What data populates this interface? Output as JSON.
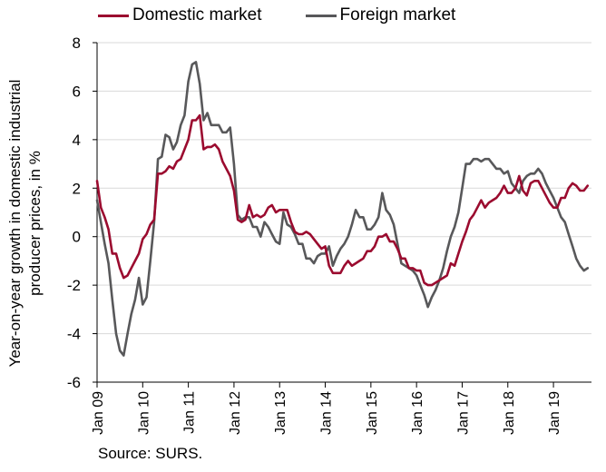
{
  "chart_data": {
    "type": "line",
    "ylabel": "Year-on-year growth in domestic industrial producer prices, in %",
    "source": "Source: SURS.",
    "ylim": [
      -6,
      8
    ],
    "yticks": [
      -6,
      -4,
      -2,
      0,
      2,
      4,
      6,
      8
    ],
    "xlim": [
      2009.0,
      2019.8333
    ],
    "xticks": [
      {
        "label": "Jan 09",
        "x": 2009.0
      },
      {
        "label": "Jan 10",
        "x": 2010.0
      },
      {
        "label": "Jan 11",
        "x": 2011.0
      },
      {
        "label": "Jan 12",
        "x": 2012.0
      },
      {
        "label": "Jan 13",
        "x": 2013.0
      },
      {
        "label": "Jan 14",
        "x": 2014.0
      },
      {
        "label": "Jan 15",
        "x": 2015.0
      },
      {
        "label": "Jan 16",
        "x": 2016.0
      },
      {
        "label": "Jan 17",
        "x": 2017.0
      },
      {
        "label": "Jan 18",
        "x": 2018.0
      },
      {
        "label": "Jan 19",
        "x": 2019.0
      }
    ],
    "grid": "horizontal",
    "legend_position": "top",
    "series": [
      {
        "name": "Domestic market",
        "color": "#9B0B2F",
        "points": [
          [
            2009.0,
            2.3
          ],
          [
            2009.083,
            1.2
          ],
          [
            2009.167,
            0.8
          ],
          [
            2009.25,
            0.3
          ],
          [
            2009.333,
            -0.7
          ],
          [
            2009.417,
            -0.7
          ],
          [
            2009.5,
            -1.3
          ],
          [
            2009.583,
            -1.7
          ],
          [
            2009.667,
            -1.6
          ],
          [
            2009.75,
            -1.3
          ],
          [
            2009.833,
            -1.0
          ],
          [
            2009.917,
            -0.7
          ],
          [
            2010.0,
            -0.1
          ],
          [
            2010.083,
            0.1
          ],
          [
            2010.167,
            0.5
          ],
          [
            2010.25,
            0.7
          ],
          [
            2010.333,
            2.6
          ],
          [
            2010.417,
            2.6
          ],
          [
            2010.5,
            2.7
          ],
          [
            2010.583,
            2.9
          ],
          [
            2010.667,
            2.8
          ],
          [
            2010.75,
            3.1
          ],
          [
            2010.833,
            3.2
          ],
          [
            2010.917,
            3.6
          ],
          [
            2011.0,
            4.0
          ],
          [
            2011.083,
            4.8
          ],
          [
            2011.167,
            4.8
          ],
          [
            2011.25,
            5.0
          ],
          [
            2011.333,
            3.6
          ],
          [
            2011.417,
            3.7
          ],
          [
            2011.5,
            3.7
          ],
          [
            2011.583,
            3.8
          ],
          [
            2011.667,
            3.6
          ],
          [
            2011.75,
            3.1
          ],
          [
            2011.833,
            2.8
          ],
          [
            2011.917,
            2.5
          ],
          [
            2012.0,
            1.9
          ],
          [
            2012.083,
            0.7
          ],
          [
            2012.167,
            0.6
          ],
          [
            2012.25,
            0.7
          ],
          [
            2012.333,
            1.3
          ],
          [
            2012.417,
            0.8
          ],
          [
            2012.5,
            0.9
          ],
          [
            2012.583,
            0.8
          ],
          [
            2012.667,
            0.9
          ],
          [
            2012.75,
            1.2
          ],
          [
            2012.833,
            1.3
          ],
          [
            2012.917,
            1.0
          ],
          [
            2013.0,
            1.1
          ],
          [
            2013.083,
            1.1
          ],
          [
            2013.167,
            1.1
          ],
          [
            2013.25,
            0.6
          ],
          [
            2013.333,
            0.2
          ],
          [
            2013.417,
            0.1
          ],
          [
            2013.5,
            0.1
          ],
          [
            2013.583,
            0.2
          ],
          [
            2013.667,
            0.1
          ],
          [
            2013.75,
            -0.1
          ],
          [
            2013.833,
            -0.3
          ],
          [
            2013.917,
            -0.5
          ],
          [
            2014.0,
            -0.4
          ],
          [
            2014.083,
            -1.2
          ],
          [
            2014.167,
            -1.5
          ],
          [
            2014.25,
            -1.5
          ],
          [
            2014.333,
            -1.5
          ],
          [
            2014.417,
            -1.2
          ],
          [
            2014.5,
            -1.0
          ],
          [
            2014.583,
            -1.2
          ],
          [
            2014.667,
            -1.1
          ],
          [
            2014.75,
            -1.0
          ],
          [
            2014.833,
            -0.9
          ],
          [
            2014.917,
            -0.6
          ],
          [
            2015.0,
            -0.6
          ],
          [
            2015.083,
            -0.4
          ],
          [
            2015.167,
            0.0
          ],
          [
            2015.25,
            0.0
          ],
          [
            2015.333,
            0.1
          ],
          [
            2015.417,
            -0.2
          ],
          [
            2015.5,
            -0.2
          ],
          [
            2015.583,
            -0.5
          ],
          [
            2015.667,
            -0.9
          ],
          [
            2015.75,
            -0.9
          ],
          [
            2015.833,
            -1.3
          ],
          [
            2015.917,
            -1.3
          ],
          [
            2016.0,
            -1.4
          ],
          [
            2016.083,
            -1.4
          ],
          [
            2016.167,
            -1.9
          ],
          [
            2016.25,
            -2.0
          ],
          [
            2016.333,
            -2.0
          ],
          [
            2016.417,
            -1.9
          ],
          [
            2016.5,
            -1.8
          ],
          [
            2016.583,
            -1.7
          ],
          [
            2016.667,
            -1.6
          ],
          [
            2016.75,
            -1.1
          ],
          [
            2016.833,
            -1.2
          ],
          [
            2016.917,
            -0.7
          ],
          [
            2017.0,
            -0.2
          ],
          [
            2017.083,
            0.2
          ],
          [
            2017.167,
            0.7
          ],
          [
            2017.25,
            0.9
          ],
          [
            2017.333,
            1.2
          ],
          [
            2017.417,
            1.5
          ],
          [
            2017.5,
            1.2
          ],
          [
            2017.583,
            1.4
          ],
          [
            2017.667,
            1.5
          ],
          [
            2017.75,
            1.6
          ],
          [
            2017.833,
            1.8
          ],
          [
            2017.917,
            2.1
          ],
          [
            2018.0,
            1.8
          ],
          [
            2018.083,
            1.8
          ],
          [
            2018.167,
            2.0
          ],
          [
            2018.25,
            2.5
          ],
          [
            2018.333,
            1.9
          ],
          [
            2018.417,
            1.7
          ],
          [
            2018.5,
            2.2
          ],
          [
            2018.583,
            2.3
          ],
          [
            2018.667,
            2.3
          ],
          [
            2018.75,
            2.0
          ],
          [
            2018.833,
            1.7
          ],
          [
            2018.917,
            1.4
          ],
          [
            2019.0,
            1.2
          ],
          [
            2019.083,
            1.2
          ],
          [
            2019.167,
            1.6
          ],
          [
            2019.25,
            1.6
          ],
          [
            2019.333,
            2.0
          ],
          [
            2019.417,
            2.2
          ],
          [
            2019.5,
            2.1
          ],
          [
            2019.583,
            1.9
          ],
          [
            2019.667,
            1.9
          ],
          [
            2019.75,
            2.1
          ]
        ]
      },
      {
        "name": "Foreign market",
        "color": "#58585A",
        "points": [
          [
            2009.0,
            1.5
          ],
          [
            2009.083,
            0.6
          ],
          [
            2009.167,
            -0.3
          ],
          [
            2009.25,
            -1.1
          ],
          [
            2009.333,
            -2.6
          ],
          [
            2009.417,
            -4.0
          ],
          [
            2009.5,
            -4.7
          ],
          [
            2009.583,
            -4.9
          ],
          [
            2009.667,
            -4.0
          ],
          [
            2009.75,
            -3.2
          ],
          [
            2009.833,
            -2.6
          ],
          [
            2009.917,
            -1.7
          ],
          [
            2010.0,
            -2.8
          ],
          [
            2010.083,
            -2.5
          ],
          [
            2010.167,
            -1.0
          ],
          [
            2010.25,
            0.6
          ],
          [
            2010.333,
            3.2
          ],
          [
            2010.417,
            3.3
          ],
          [
            2010.5,
            4.2
          ],
          [
            2010.583,
            4.1
          ],
          [
            2010.667,
            3.6
          ],
          [
            2010.75,
            3.9
          ],
          [
            2010.833,
            4.6
          ],
          [
            2010.917,
            5.0
          ],
          [
            2011.0,
            6.4
          ],
          [
            2011.083,
            7.1
          ],
          [
            2011.167,
            7.2
          ],
          [
            2011.25,
            6.3
          ],
          [
            2011.333,
            4.8
          ],
          [
            2011.417,
            5.1
          ],
          [
            2011.5,
            4.6
          ],
          [
            2011.583,
            4.6
          ],
          [
            2011.667,
            4.6
          ],
          [
            2011.75,
            4.3
          ],
          [
            2011.833,
            4.3
          ],
          [
            2011.917,
            4.5
          ],
          [
            2012.0,
            3.0
          ],
          [
            2012.083,
            0.9
          ],
          [
            2012.167,
            0.7
          ],
          [
            2012.25,
            0.8
          ],
          [
            2012.333,
            0.8
          ],
          [
            2012.417,
            0.4
          ],
          [
            2012.5,
            0.4
          ],
          [
            2012.583,
            0.0
          ],
          [
            2012.667,
            0.6
          ],
          [
            2012.75,
            0.4
          ],
          [
            2012.833,
            0.1
          ],
          [
            2012.917,
            -0.2
          ],
          [
            2013.0,
            -0.3
          ],
          [
            2013.083,
            1.0
          ],
          [
            2013.167,
            0.5
          ],
          [
            2013.25,
            0.4
          ],
          [
            2013.333,
            0.1
          ],
          [
            2013.417,
            -0.3
          ],
          [
            2013.5,
            -0.3
          ],
          [
            2013.583,
            -0.9
          ],
          [
            2013.667,
            -0.9
          ],
          [
            2013.75,
            -1.1
          ],
          [
            2013.833,
            -0.8
          ],
          [
            2013.917,
            -0.7
          ],
          [
            2014.0,
            -0.7
          ],
          [
            2014.083,
            -0.4
          ],
          [
            2014.167,
            -1.2
          ],
          [
            2014.25,
            -0.8
          ],
          [
            2014.333,
            -0.5
          ],
          [
            2014.417,
            -0.3
          ],
          [
            2014.5,
            0.0
          ],
          [
            2014.583,
            0.5
          ],
          [
            2014.667,
            1.1
          ],
          [
            2014.75,
            0.8
          ],
          [
            2014.833,
            0.8
          ],
          [
            2014.917,
            0.3
          ],
          [
            2015.0,
            0.3
          ],
          [
            2015.083,
            0.5
          ],
          [
            2015.167,
            0.8
          ],
          [
            2015.25,
            1.8
          ],
          [
            2015.333,
            1.1
          ],
          [
            2015.417,
            0.9
          ],
          [
            2015.5,
            0.5
          ],
          [
            2015.583,
            -0.3
          ],
          [
            2015.667,
            -1.1
          ],
          [
            2015.75,
            -1.2
          ],
          [
            2015.833,
            -1.3
          ],
          [
            2015.917,
            -1.4
          ],
          [
            2016.0,
            -1.6
          ],
          [
            2016.083,
            -2.0
          ],
          [
            2016.167,
            -2.4
          ],
          [
            2016.25,
            -2.9
          ],
          [
            2016.333,
            -2.5
          ],
          [
            2016.417,
            -2.2
          ],
          [
            2016.5,
            -1.8
          ],
          [
            2016.583,
            -1.3
          ],
          [
            2016.667,
            -0.6
          ],
          [
            2016.75,
            0.0
          ],
          [
            2016.833,
            0.4
          ],
          [
            2016.917,
            1.0
          ],
          [
            2017.0,
            2.0
          ],
          [
            2017.083,
            3.0
          ],
          [
            2017.167,
            3.0
          ],
          [
            2017.25,
            3.2
          ],
          [
            2017.333,
            3.2
          ],
          [
            2017.417,
            3.1
          ],
          [
            2017.5,
            3.2
          ],
          [
            2017.583,
            3.2
          ],
          [
            2017.667,
            3.0
          ],
          [
            2017.75,
            2.8
          ],
          [
            2017.833,
            2.8
          ],
          [
            2017.917,
            2.6
          ],
          [
            2018.0,
            2.7
          ],
          [
            2018.083,
            2.2
          ],
          [
            2018.167,
            2.0
          ],
          [
            2018.25,
            1.8
          ],
          [
            2018.333,
            2.3
          ],
          [
            2018.417,
            2.5
          ],
          [
            2018.5,
            2.6
          ],
          [
            2018.583,
            2.6
          ],
          [
            2018.667,
            2.8
          ],
          [
            2018.75,
            2.6
          ],
          [
            2018.833,
            2.2
          ],
          [
            2018.917,
            1.9
          ],
          [
            2019.0,
            1.6
          ],
          [
            2019.083,
            1.2
          ],
          [
            2019.167,
            0.8
          ],
          [
            2019.25,
            0.6
          ],
          [
            2019.333,
            0.1
          ],
          [
            2019.417,
            -0.4
          ],
          [
            2019.5,
            -0.9
          ],
          [
            2019.583,
            -1.2
          ],
          [
            2019.667,
            -1.4
          ],
          [
            2019.75,
            -1.3
          ]
        ]
      }
    ]
  }
}
